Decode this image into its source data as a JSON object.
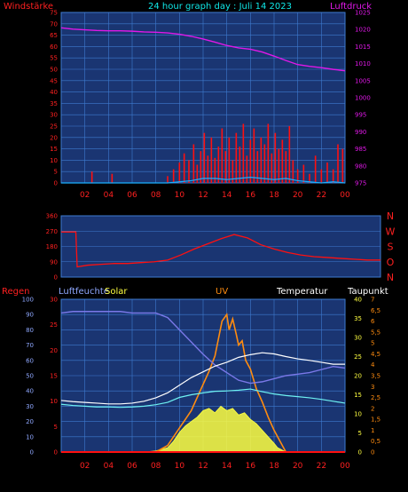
{
  "colors": {
    "background": "#000000",
    "plot": "#1a3572",
    "grid": "#3f7bd0",
    "wind": "#ff1010",
    "gust": "#1ab0ff",
    "pressure": "#e018e8",
    "temperature": "#ffffff",
    "dewpoint": "#6ef2f2",
    "humidity": "#7a78e8",
    "solar": "#ffff40",
    "uv": "#ff8c10",
    "rain": "#ff1010",
    "title": "#10e8e8",
    "axisRed": "#ff2020",
    "axisMagenta": "#e018e8",
    "axisWhite": "#ffffff",
    "axisBlue": "#8fa8ff",
    "axisYellow": "#ffff40",
    "axisOrange": "#ff8c10"
  },
  "header": {
    "title": "24 hour graph day : Juli 14 2023",
    "left_label": "Windstärke",
    "right_label": "Luftdruck"
  },
  "direction_labels": [
    "N",
    "W",
    "S",
    "O",
    "N"
  ],
  "bottom_header": {
    "rain": "Regen",
    "humidity": "Luftfeuchte",
    "solar": "Solar",
    "uv": "UV",
    "temperature": "Temperatur",
    "dewpoint": "Taupunkt"
  },
  "x_ticks": [
    "02",
    "04",
    "06",
    "08",
    "10",
    "12",
    "14",
    "16",
    "18",
    "20",
    "22",
    "00"
  ],
  "chart_data": [
    {
      "type": "line",
      "x_unit": "hour",
      "x_range": [
        0,
        24
      ],
      "y_left": {
        "ticks": [
          0,
          5,
          10,
          15,
          20,
          25,
          30,
          35,
          40,
          45,
          50,
          55,
          60,
          65,
          70,
          75
        ],
        "range": [
          0,
          75
        ]
      },
      "y_right": {
        "ticks": [
          975,
          980,
          985,
          990,
          995,
          1000,
          1005,
          1010,
          1015,
          1020,
          1025
        ],
        "range": [
          975,
          1025
        ]
      },
      "series": [
        {
          "axis": "left",
          "style": "bars",
          "x": [
            2.6,
            4.3,
            9.0,
            9.5,
            10.0,
            10.4,
            10.8,
            11.2,
            11.5,
            11.8,
            12.1,
            12.4,
            12.7,
            13.0,
            13.3,
            13.6,
            13.9,
            14.2,
            14.5,
            14.8,
            15.1,
            15.4,
            15.7,
            16.0,
            16.3,
            16.6,
            16.9,
            17.2,
            17.5,
            17.8,
            18.1,
            18.4,
            18.7,
            19.0,
            19.3,
            19.6,
            20.0,
            20.5,
            21.0,
            21.5,
            22.0,
            22.5,
            23.0,
            23.4,
            23.8
          ],
          "y": [
            5,
            4,
            3,
            6,
            9,
            13,
            10,
            17,
            8,
            14,
            22,
            12,
            20,
            11,
            16,
            24,
            14,
            20,
            10,
            22,
            16,
            26,
            12,
            19,
            24,
            14,
            20,
            17,
            26,
            13,
            22,
            15,
            19,
            14,
            25,
            10,
            6,
            8,
            4,
            12,
            6,
            9,
            6,
            17,
            15
          ]
        },
        {
          "axis": "left",
          "x": [
            0,
            9,
            10,
            11,
            12,
            13,
            14,
            15,
            16,
            17,
            18,
            19,
            20,
            21,
            22,
            23,
            24
          ],
          "y": [
            0,
            0,
            0.5,
            1,
            2,
            2,
            1.5,
            2,
            2.5,
            2,
            1.5,
            2,
            1,
            0.5,
            0,
            0.5,
            0
          ]
        },
        {
          "axis": "right",
          "x": [
            0,
            1,
            2,
            3,
            4,
            5,
            6,
            7,
            8,
            9,
            10,
            11,
            12,
            13,
            14,
            15,
            16,
            17,
            18,
            19,
            20,
            21,
            22,
            23,
            24
          ],
          "y": [
            1020.5,
            1020.1,
            1019.9,
            1019.7,
            1019.6,
            1019.6,
            1019.5,
            1019.3,
            1019.2,
            1019.0,
            1018.6,
            1018.0,
            1017.2,
            1016.3,
            1015.3,
            1014.6,
            1014.2,
            1013.4,
            1012.2,
            1010.9,
            1009.7,
            1009.2,
            1008.8,
            1008.3,
            1007.9
          ]
        }
      ]
    },
    {
      "type": "line",
      "x_range": [
        0,
        24
      ],
      "y_left": {
        "ticks": [
          0,
          90,
          180,
          270,
          360
        ],
        "range": [
          0,
          360
        ]
      },
      "series": [
        {
          "axis": "left",
          "x": [
            0,
            1.1,
            1.2,
            2,
            3,
            4,
            5,
            6,
            7,
            8,
            9,
            10,
            11,
            12,
            13,
            14,
            15,
            16,
            17,
            18,
            19,
            20,
            21,
            22,
            23,
            24
          ],
          "y": [
            265,
            265,
            60,
            70,
            75,
            80,
            80,
            85,
            90,
            100,
            130,
            165,
            195,
            225,
            250,
            230,
            190,
            165,
            145,
            130,
            120,
            115,
            110,
            105,
            100,
            100
          ]
        }
      ]
    },
    {
      "type": "line",
      "x_range": [
        0,
        24
      ],
      "axes": {
        "rain": {
          "ticks": [
            0,
            5,
            10,
            15,
            20,
            25,
            30
          ],
          "range": [
            0,
            30
          ]
        },
        "humidity": {
          "ticks": [
            0,
            10,
            20,
            30,
            40,
            50,
            60,
            70,
            80,
            90,
            100
          ],
          "range": [
            0,
            100
          ]
        },
        "temperature": {
          "ticks": [
            0,
            5,
            10,
            15,
            20,
            25,
            30,
            35,
            40
          ],
          "range": [
            0,
            40
          ]
        },
        "dewpoint": {
          "ticks": [
            "0",
            "0,5",
            "1",
            "1,5",
            "2",
            "2,5",
            "3",
            "3,5",
            "4",
            "4,5",
            "5",
            "5,5",
            "6",
            "6,5",
            "7"
          ],
          "range": [
            0,
            7
          ]
        }
      },
      "series": [
        {
          "axis": "humidity",
          "x": [
            0,
            1,
            2,
            3,
            4,
            5,
            6,
            7,
            8,
            9,
            10,
            11,
            12,
            13,
            14,
            15,
            16,
            17,
            18,
            19,
            20,
            21,
            22,
            23,
            24
          ],
          "y": [
            91,
            92,
            92,
            92,
            92,
            92,
            91,
            91,
            91,
            88,
            80,
            72,
            64,
            57,
            52,
            47,
            45,
            46,
            48,
            50,
            51,
            52,
            54,
            56,
            55
          ]
        },
        {
          "axis": "temperature",
          "x": [
            0,
            1,
            2,
            3,
            4,
            5,
            6,
            7,
            8,
            9,
            10,
            11,
            12,
            13,
            14,
            15,
            16,
            17,
            18,
            19,
            20,
            21,
            22,
            23,
            24
          ],
          "y": [
            13.5,
            13.2,
            13.0,
            12.8,
            12.6,
            12.6,
            12.8,
            13.3,
            14.2,
            15.5,
            17.5,
            19.5,
            21.0,
            22.5,
            23.5,
            24.8,
            25.5,
            26.0,
            25.7,
            25.0,
            24.4,
            24.0,
            23.5,
            23.0,
            23.0
          ]
        },
        {
          "axis": "temperature",
          "x": [
            0,
            1,
            2,
            3,
            4,
            5,
            6,
            7,
            8,
            9,
            10,
            11,
            12,
            13,
            14,
            15,
            16,
            17,
            18,
            19,
            20,
            21,
            22,
            23,
            24
          ],
          "y": [
            12.5,
            12.2,
            12.0,
            11.8,
            11.8,
            11.7,
            11.8,
            12.0,
            12.4,
            13.0,
            14.3,
            15.0,
            15.5,
            15.9,
            16.0,
            16.2,
            16.5,
            15.8,
            15.2,
            14.8,
            14.5,
            14.2,
            13.8,
            13.3,
            12.8
          ]
        },
        {
          "axis": "dewpoint",
          "style": "area",
          "x": [
            0,
            7,
            8,
            9,
            9.5,
            10,
            10.5,
            11,
            11.5,
            12,
            12.5,
            13,
            13.5,
            14,
            14.5,
            15,
            15.5,
            16,
            16.5,
            17,
            17.5,
            18,
            18.3,
            19,
            24
          ],
          "y": [
            0,
            0,
            0.05,
            0.2,
            0.5,
            0.9,
            1.2,
            1.4,
            1.6,
            1.9,
            2.0,
            1.8,
            2.1,
            1.9,
            2.0,
            1.7,
            1.8,
            1.5,
            1.3,
            1.0,
            0.7,
            0.4,
            0.2,
            0,
            0
          ]
        },
        {
          "axis": "dewpoint",
          "x": [
            0,
            8,
            9,
            10,
            10.5,
            11,
            11.5,
            12,
            12.5,
            13,
            13.3,
            13.6,
            14,
            14.2,
            14.5,
            14.8,
            15,
            15.3,
            15.6,
            16,
            16.5,
            17,
            17.5,
            18,
            18.5,
            19,
            24
          ],
          "y": [
            0,
            0,
            0.3,
            1.1,
            1.5,
            1.9,
            2.5,
            3.1,
            3.7,
            4.4,
            5.2,
            6.0,
            6.3,
            5.6,
            6.1,
            5.4,
            4.9,
            5.1,
            4.2,
            3.8,
            2.9,
            2.3,
            1.6,
            1.0,
            0.5,
            0,
            0
          ]
        },
        {
          "axis": "rain",
          "x": [
            0,
            24
          ],
          "y": [
            0,
            0
          ]
        }
      ]
    }
  ]
}
